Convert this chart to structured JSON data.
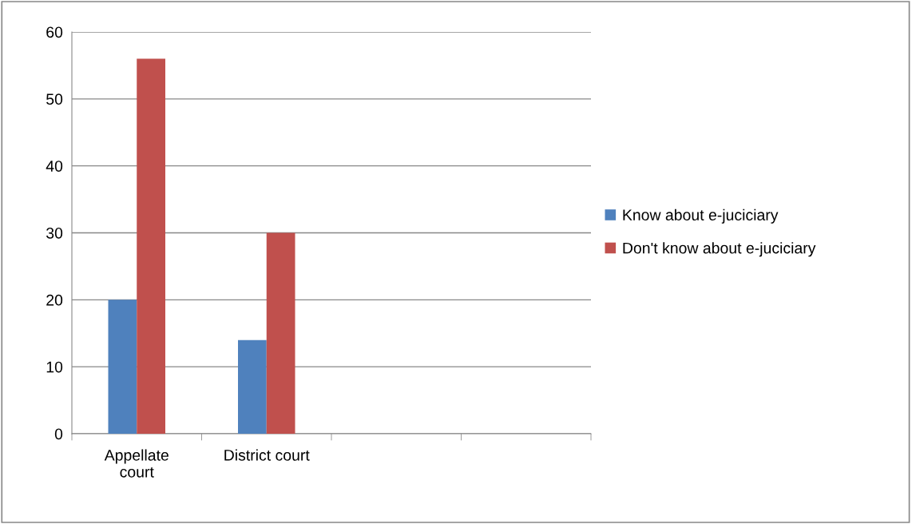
{
  "chart_data": {
    "type": "bar",
    "categories": [
      "Appellate\ncourt",
      "District court",
      null,
      null
    ],
    "series": [
      {
        "name": "Know about e-juciciary",
        "color": "#4f81bd",
        "values": [
          20,
          14,
          null,
          null
        ]
      },
      {
        "name": "Don't know about e-juciciary",
        "color": "#c0504d",
        "values": [
          56,
          30,
          null,
          null
        ]
      }
    ],
    "ylim": [
      0,
      60
    ],
    "yticks": [
      0,
      10,
      20,
      30,
      40,
      50,
      60
    ],
    "grid": "y",
    "legend": "right"
  }
}
